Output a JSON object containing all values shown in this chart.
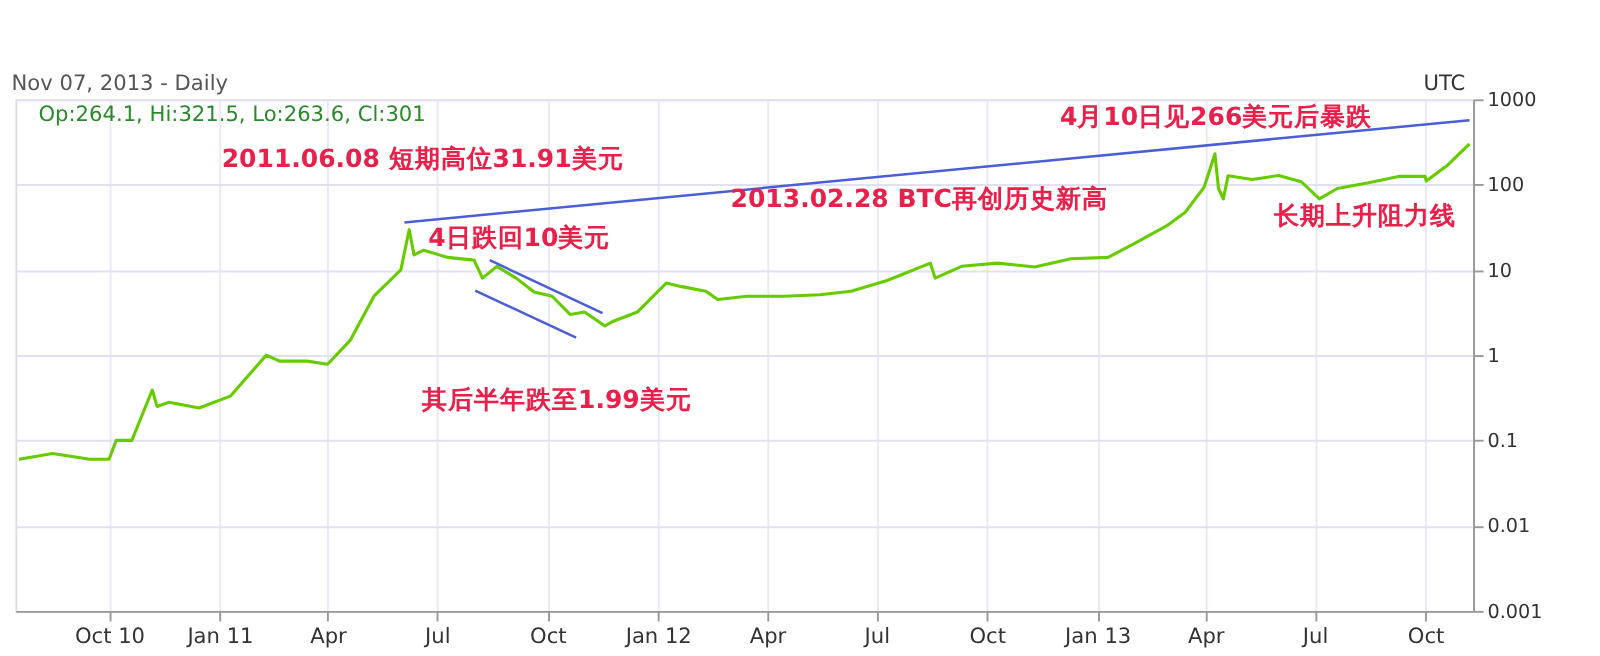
{
  "chart_data": {
    "type": "line",
    "subtitle": "Nov 07, 2013 - Daily",
    "annotations": [
      "UTC",
      "Op:264.1, Hi:321.5, Lo:263.6, Cl:301",
      {
        "text": "2011.06.08 短期高位31.91美元",
        "x": "2011-06-08",
        "y": 31.91
      },
      "4日跌回10美元",
      {
        "text": "其后半年跌至1.99美元",
        "x": "2011-11-18",
        "y": 1.99
      },
      "2013.02.28 BTC再创历史新高",
      {
        "text": "4月10日见266美元后暴跌",
        "x": "2013-04-10",
        "y": 266
      },
      "长期上升阻力线"
    ],
    "log": true,
    "grid": true,
    "marker": "none",
    "line_style": "solid",
    "xlim": [
      "2010-07-15",
      "2013-11-10"
    ],
    "xticks": [
      {
        "value": "2010-10-01",
        "label": "Oct 10"
      },
      {
        "value": "2011-01-01",
        "label": "Jan 11"
      },
      {
        "value": "2011-04-01",
        "label": "Apr"
      },
      {
        "value": "2011-07-01",
        "label": "Jul"
      },
      {
        "value": "2011-10-01",
        "label": "Oct"
      },
      {
        "value": "2012-01-01",
        "label": "Jan 12"
      },
      {
        "value": "2012-04-01",
        "label": "Apr"
      },
      {
        "value": "2012-07-01",
        "label": "Jul"
      },
      {
        "value": "2012-10-01",
        "label": "Oct"
      },
      {
        "value": "2013-01-01",
        "label": "Jan 13"
      },
      {
        "value": "2013-04-01",
        "label": "Apr"
      },
      {
        "value": "2013-07-01",
        "label": "Jul"
      },
      {
        "value": "2013-10-01",
        "label": "Oct"
      }
    ],
    "ylim": [
      0.001,
      1000
    ],
    "yticks": [
      0.001,
      0.01,
      0.1,
      1,
      10,
      100,
      1000
    ],
    "series": [
      {
        "color": "#66cc00",
        "x": [
          "2010-07-18",
          "2010-08-15",
          "2010-09-15",
          "2010-10-01",
          "2010-10-07",
          "2010-10-20",
          "2010-11-06",
          "2010-11-10",
          "2010-11-20",
          "2010-12-15",
          "2011-01-10",
          "2011-02-09",
          "2011-02-20",
          "2011-03-15",
          "2011-04-01",
          "2011-04-20",
          "2011-05-10",
          "2011-05-25",
          "2011-06-01",
          "2011-06-08",
          "2011-06-12",
          "2011-06-20",
          "2011-07-10",
          "2011-08-01",
          "2011-08-08",
          "2011-08-20",
          "2011-09-05",
          "2011-09-20",
          "2011-10-05",
          "2011-10-20",
          "2011-11-01",
          "2011-11-18",
          "2011-11-25",
          "2011-12-15",
          "2012-01-08",
          "2012-01-20",
          "2012-02-10",
          "2012-02-20",
          "2012-03-15",
          "2012-04-15",
          "2012-05-15",
          "2012-06-10",
          "2012-07-10",
          "2012-08-15",
          "2012-08-19",
          "2012-09-10",
          "2012-10-10",
          "2012-11-10",
          "2012-12-10",
          "2013-01-10",
          "2013-01-31",
          "2013-02-28",
          "2013-03-15",
          "2013-03-31",
          "2013-04-09",
          "2013-04-10",
          "2013-04-12",
          "2013-04-16",
          "2013-04-20",
          "2013-05-10",
          "2013-06-01",
          "2013-06-20",
          "2013-07-05",
          "2013-07-20",
          "2013-08-15",
          "2013-09-10",
          "2013-10-01",
          "2013-10-02",
          "2013-10-20",
          "2013-11-07"
        ],
        "values": [
          0.06,
          0.07,
          0.06,
          0.06,
          0.1,
          0.1,
          0.39,
          0.25,
          0.28,
          0.24,
          0.33,
          1.0,
          0.85,
          0.85,
          0.78,
          1.5,
          5,
          8,
          10,
          29.6,
          15,
          17,
          14,
          13,
          8,
          11,
          8,
          5.5,
          4.9,
          3,
          3.2,
          2.2,
          2.5,
          3.2,
          7,
          6.4,
          5.6,
          4.5,
          4.9,
          4.9,
          5.1,
          5.6,
          7.5,
          12,
          8,
          11,
          12,
          10.8,
          13.5,
          14,
          20,
          33,
          47,
          93,
          230,
          165,
          90,
          68,
          127,
          115,
          128,
          108,
          68,
          90,
          105,
          125,
          125,
          110,
          170,
          301
        ]
      },
      {
        "type": "line",
        "color": "#4a5fd6",
        "x": [
          "2011-06-04",
          "2013-11-07"
        ],
        "values": [
          36,
          570
        ]
      },
      {
        "type": "line",
        "color": "#4a5fd6",
        "x": [
          "2011-08-14",
          "2011-11-16"
        ],
        "values": [
          13,
          3.1
        ]
      },
      {
        "type": "line",
        "color": "#4a5fd6",
        "x": [
          "2011-08-02",
          "2011-10-25"
        ],
        "values": [
          5.7,
          1.6
        ]
      }
    ]
  }
}
